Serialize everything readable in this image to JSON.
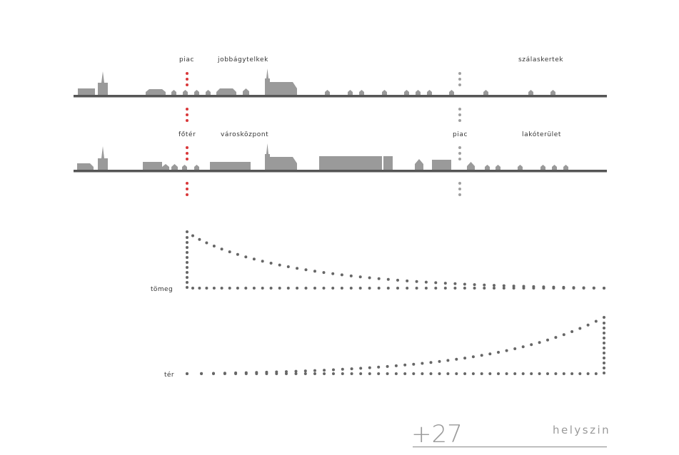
{
  "rows": [
    {
      "labels": [
        {
          "name": "label-piac-1",
          "text": "piac"
        },
        {
          "name": "label-jobbagytelkek",
          "text": "jobbágytelkek"
        },
        {
          "name": "label-szalaskertek",
          "text": "szálaskertek"
        }
      ]
    },
    {
      "labels": [
        {
          "name": "label-foter",
          "text": "főtér"
        },
        {
          "name": "label-varoskozpont",
          "text": "városközpont"
        },
        {
          "name": "label-piac-2",
          "text": "piac"
        },
        {
          "name": "label-lakoterulet",
          "text": "lakóterület"
        }
      ]
    }
  ],
  "charts": {
    "mass_label": "tömeg",
    "space_label": "tér"
  },
  "footer": {
    "page_number": "+27",
    "section": "helyszin"
  },
  "colors": {
    "building": "#9a9a9a",
    "ground": "#555555",
    "marker_red": "#d9383a",
    "marker_gray": "#a0a0a0",
    "dots": "#666666"
  }
}
